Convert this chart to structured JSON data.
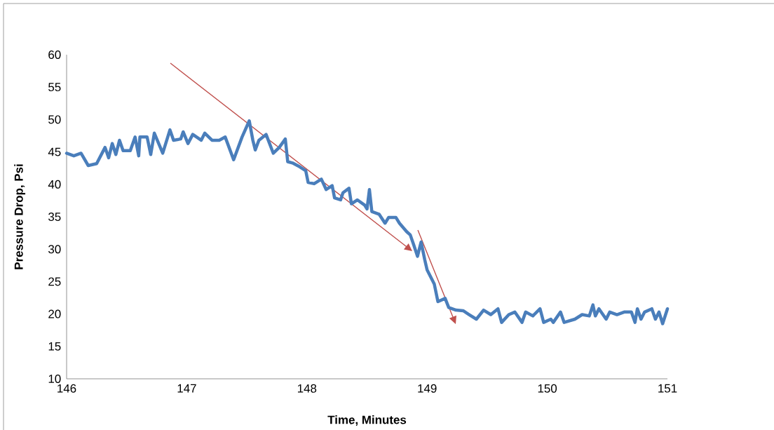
{
  "chart_data": {
    "type": "line",
    "xlabel": "Time, Minutes",
    "ylabel": "Pressure Drop, Psi",
    "xlim": [
      146,
      151
    ],
    "xticks": [
      146,
      147,
      148,
      149,
      150,
      151
    ],
    "ylim": [
      10,
      60
    ],
    "yticks": [
      10,
      15,
      20,
      25,
      30,
      35,
      40,
      45,
      50,
      55,
      60
    ],
    "grid": false,
    "series": [
      {
        "color": "#4a7ebb",
        "x": [
          146.0,
          146.06,
          146.12,
          146.18,
          146.25,
          146.32,
          146.35,
          146.38,
          146.41,
          146.44,
          146.47,
          146.53,
          146.57,
          146.6,
          146.61,
          146.67,
          146.7,
          146.73,
          146.8,
          146.86,
          146.89,
          146.95,
          146.97,
          147.01,
          147.05,
          147.12,
          147.15,
          147.21,
          147.27,
          147.32,
          147.39,
          147.46,
          147.52,
          147.55,
          147.57,
          147.6,
          147.66,
          147.72,
          147.77,
          147.82,
          147.84,
          147.88,
          147.94,
          147.99,
          148.01,
          148.06,
          148.12,
          148.16,
          148.21,
          148.23,
          148.28,
          148.3,
          148.35,
          148.37,
          148.42,
          148.48,
          148.5,
          148.52,
          148.54,
          148.6,
          148.65,
          148.68,
          148.74,
          148.77,
          148.83,
          148.86,
          148.89,
          148.92,
          148.95,
          148.98,
          149.0,
          149.06,
          149.09,
          149.15,
          149.18,
          149.24,
          149.3,
          149.35,
          149.41,
          149.47,
          149.53,
          149.59,
          149.62,
          149.68,
          149.73,
          149.79,
          149.82,
          149.88,
          149.94,
          149.97,
          150.03,
          150.05,
          150.11,
          150.14,
          150.23,
          150.29,
          150.35,
          150.38,
          150.4,
          150.43,
          150.49,
          150.52,
          150.58,
          150.64,
          150.7,
          150.73,
          150.75,
          150.78,
          150.81,
          150.87,
          150.9,
          150.93,
          150.96,
          151.0
        ],
        "values": [
          44.8,
          44.4,
          44.8,
          42.9,
          43.2,
          45.7,
          44.1,
          46.3,
          44.6,
          46.8,
          45.2,
          45.2,
          47.3,
          44.4,
          47.3,
          47.3,
          44.6,
          47.9,
          44.8,
          48.4,
          46.8,
          47.0,
          48.1,
          46.3,
          47.7,
          46.8,
          47.9,
          46.8,
          46.8,
          47.3,
          43.8,
          47.3,
          49.8,
          46.8,
          45.3,
          46.8,
          47.7,
          44.8,
          45.7,
          47.0,
          43.5,
          43.3,
          42.7,
          42.1,
          40.3,
          40.1,
          40.8,
          39.2,
          39.8,
          37.9,
          37.6,
          38.7,
          39.4,
          37.0,
          37.6,
          36.8,
          36.2,
          39.2,
          35.8,
          35.4,
          34.0,
          34.9,
          34.9,
          34.0,
          32.7,
          32.2,
          30.6,
          28.9,
          31.1,
          28.4,
          26.8,
          24.6,
          21.9,
          22.4,
          21.0,
          20.6,
          20.5,
          19.9,
          19.2,
          20.6,
          19.9,
          20.8,
          18.7,
          19.9,
          20.3,
          18.7,
          20.3,
          19.7,
          20.8,
          18.7,
          19.2,
          18.7,
          20.3,
          18.7,
          19.2,
          19.9,
          19.7,
          21.4,
          19.7,
          20.8,
          19.2,
          20.3,
          19.9,
          20.3,
          20.3,
          18.7,
          20.8,
          19.2,
          20.3,
          20.8,
          19.2,
          20.3,
          18.5,
          20.8
        ]
      }
    ]
  }
}
